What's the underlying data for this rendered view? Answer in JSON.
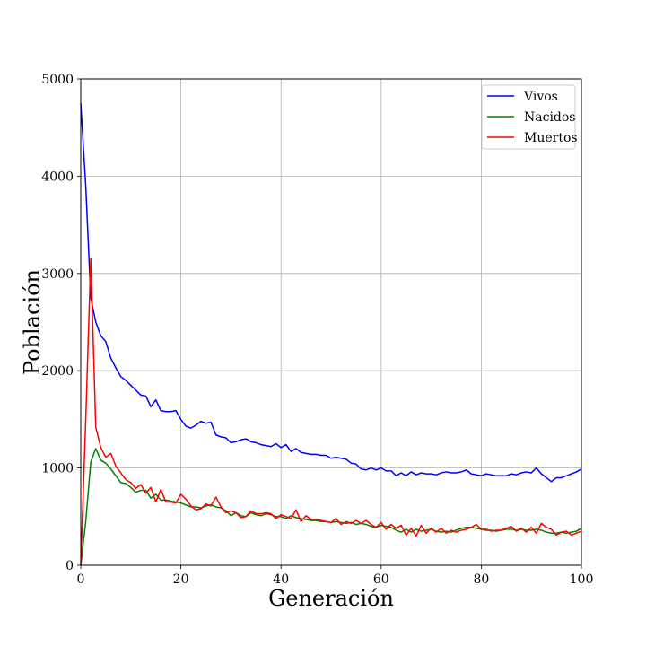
{
  "chart_data": {
    "type": "line",
    "title": "",
    "xlabel": "Generación",
    "ylabel": "Población",
    "xlim": [
      0,
      100
    ],
    "ylim": [
      0,
      5000
    ],
    "xticks": [
      0,
      20,
      40,
      60,
      80,
      100
    ],
    "yticks": [
      0,
      1000,
      2000,
      3000,
      4000,
      5000
    ],
    "grid": true,
    "legend_position": "top-right",
    "x": [
      0,
      1,
      2,
      3,
      4,
      5,
      6,
      7,
      8,
      9,
      10,
      11,
      12,
      13,
      14,
      15,
      16,
      17,
      18,
      19,
      20,
      21,
      22,
      23,
      24,
      25,
      26,
      27,
      28,
      29,
      30,
      31,
      32,
      33,
      34,
      35,
      36,
      37,
      38,
      39,
      40,
      41,
      42,
      43,
      44,
      45,
      46,
      47,
      48,
      49,
      50,
      51,
      52,
      53,
      54,
      55,
      56,
      57,
      58,
      59,
      60,
      61,
      62,
      63,
      64,
      65,
      66,
      67,
      68,
      69,
      70,
      71,
      72,
      73,
      74,
      75,
      76,
      77,
      78,
      79,
      80,
      81,
      82,
      83,
      84,
      85,
      86,
      87,
      88,
      89,
      90,
      91,
      92,
      93,
      94,
      95,
      96,
      97,
      98,
      99,
      100
    ],
    "series": [
      {
        "name": "Vivos",
        "color": "#0000ff",
        "values": [
          4750,
          3900,
          2750,
          2500,
          2360,
          2300,
          2130,
          2030,
          1940,
          1900,
          1850,
          1800,
          1750,
          1740,
          1630,
          1700,
          1590,
          1580,
          1580,
          1590,
          1500,
          1430,
          1410,
          1440,
          1480,
          1460,
          1470,
          1340,
          1320,
          1310,
          1260,
          1270,
          1290,
          1300,
          1270,
          1260,
          1240,
          1230,
          1220,
          1250,
          1210,
          1240,
          1170,
          1200,
          1160,
          1150,
          1140,
          1140,
          1130,
          1130,
          1100,
          1110,
          1100,
          1090,
          1050,
          1040,
          990,
          980,
          1000,
          980,
          1000,
          970,
          970,
          920,
          950,
          920,
          960,
          930,
          950,
          940,
          940,
          930,
          950,
          960,
          950,
          950,
          960,
          980,
          940,
          930,
          920,
          940,
          930,
          920,
          920,
          920,
          940,
          930,
          950,
          960,
          950,
          1000,
          940,
          900,
          860,
          900,
          900,
          920,
          940,
          960,
          990
        ]
      },
      {
        "name": "Nacidos",
        "color": "#008000",
        "values": [
          0,
          450,
          1060,
          1200,
          1080,
          1050,
          990,
          920,
          850,
          840,
          800,
          750,
          770,
          770,
          690,
          730,
          670,
          670,
          660,
          650,
          640,
          620,
          600,
          600,
          590,
          610,
          620,
          600,
          590,
          560,
          510,
          540,
          510,
          500,
          540,
          520,
          510,
          530,
          520,
          500,
          500,
          480,
          510,
          490,
          480,
          470,
          460,
          460,
          450,
          450,
          440,
          450,
          440,
          430,
          440,
          420,
          430,
          420,
          400,
          390,
          410,
          400,
          390,
          360,
          340,
          370,
          340,
          370,
          350,
          360,
          370,
          350,
          340,
          350,
          340,
          360,
          380,
          390,
          390,
          380,
          370,
          360,
          360,
          350,
          360,
          370,
          370,
          360,
          370,
          360,
          360,
          370,
          360,
          340,
          330,
          330,
          340,
          330,
          340,
          350,
          380
        ]
      },
      {
        "name": "Muertos",
        "color": "#ff0000",
        "values": [
          0,
          1500,
          3150,
          1420,
          1210,
          1110,
          1150,
          1020,
          950,
          880,
          850,
          790,
          830,
          740,
          800,
          650,
          780,
          650,
          650,
          640,
          730,
          680,
          610,
          570,
          580,
          630,
          610,
          700,
          600,
          540,
          560,
          540,
          490,
          500,
          560,
          530,
          530,
          540,
          530,
          480,
          520,
          500,
          480,
          570,
          450,
          510,
          470,
          470,
          460,
          450,
          440,
          480,
          420,
          450,
          430,
          460,
          430,
          460,
          420,
          390,
          440,
          370,
          420,
          380,
          410,
          310,
          380,
          300,
          410,
          330,
          380,
          340,
          380,
          330,
          360,
          340,
          360,
          370,
          390,
          420,
          370,
          370,
          350,
          360,
          360,
          380,
          400,
          350,
          380,
          340,
          390,
          330,
          430,
          390,
          370,
          310,
          340,
          350,
          310,
          330,
          350
        ]
      }
    ]
  }
}
